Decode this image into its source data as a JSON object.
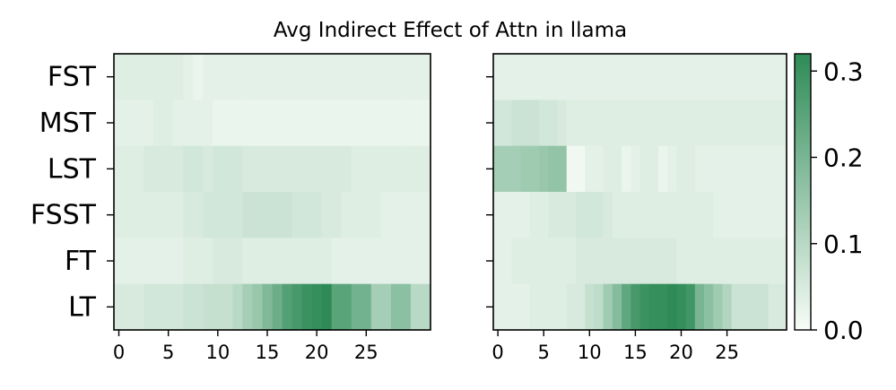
{
  "chart_data": {
    "type": "heatmap",
    "title": "Avg Indirect Effect of Attn in llama",
    "colormap": {
      "low": "#f7fcf7",
      "high": "#2e8b57"
    },
    "vmin": 0.0,
    "vmax": 0.32,
    "colorbar_ticks": [
      {
        "value": 0.0,
        "label": "0.0"
      },
      {
        "value": 0.1,
        "label": "0.1"
      },
      {
        "value": 0.2,
        "label": "0.2"
      },
      {
        "value": 0.3,
        "label": "0.3"
      }
    ],
    "y_categories": [
      "FST",
      "MST",
      "LST",
      "FSST",
      "FT",
      "LT"
    ],
    "x_ticks": [
      0,
      5,
      10,
      15,
      20,
      25
    ],
    "n_layers": 32,
    "panels": [
      {
        "name": "left",
        "matrix": [
          [
            0.04,
            0.04,
            0.04,
            0.04,
            0.04,
            0.04,
            0.04,
            0.03,
            0.02,
            0.03,
            0.03,
            0.03,
            0.03,
            0.03,
            0.03,
            0.03,
            0.03,
            0.03,
            0.03,
            0.03,
            0.03,
            0.03,
            0.03,
            0.03,
            0.03,
            0.03,
            0.03,
            0.03,
            0.03,
            0.03,
            0.03,
            0.03
          ],
          [
            0.03,
            0.03,
            0.03,
            0.03,
            0.04,
            0.04,
            0.03,
            0.03,
            0.03,
            0.03,
            0.02,
            0.02,
            0.02,
            0.02,
            0.02,
            0.02,
            0.02,
            0.02,
            0.02,
            0.02,
            0.02,
            0.02,
            0.02,
            0.02,
            0.02,
            0.02,
            0.02,
            0.02,
            0.02,
            0.02,
            0.02,
            0.02
          ],
          [
            0.04,
            0.04,
            0.04,
            0.05,
            0.05,
            0.05,
            0.05,
            0.06,
            0.06,
            0.05,
            0.06,
            0.06,
            0.06,
            0.05,
            0.05,
            0.05,
            0.05,
            0.05,
            0.05,
            0.05,
            0.05,
            0.05,
            0.05,
            0.05,
            0.04,
            0.04,
            0.04,
            0.04,
            0.04,
            0.04,
            0.04,
            0.04
          ],
          [
            0.04,
            0.04,
            0.04,
            0.04,
            0.04,
            0.04,
            0.04,
            0.05,
            0.05,
            0.06,
            0.06,
            0.06,
            0.06,
            0.07,
            0.07,
            0.07,
            0.07,
            0.07,
            0.06,
            0.06,
            0.06,
            0.05,
            0.05,
            0.04,
            0.04,
            0.04,
            0.04,
            0.03,
            0.03,
            0.03,
            0.03,
            0.03
          ],
          [
            0.03,
            0.03,
            0.03,
            0.03,
            0.03,
            0.03,
            0.03,
            0.04,
            0.04,
            0.04,
            0.05,
            0.05,
            0.05,
            0.04,
            0.04,
            0.04,
            0.04,
            0.04,
            0.04,
            0.04,
            0.04,
            0.04,
            0.03,
            0.03,
            0.03,
            0.03,
            0.03,
            0.03,
            0.03,
            0.03,
            0.03,
            0.03
          ],
          [
            0.05,
            0.05,
            0.05,
            0.06,
            0.06,
            0.06,
            0.06,
            0.07,
            0.07,
            0.08,
            0.08,
            0.08,
            0.1,
            0.13,
            0.15,
            0.19,
            0.22,
            0.26,
            0.28,
            0.3,
            0.31,
            0.32,
            0.25,
            0.25,
            0.21,
            0.21,
            0.13,
            0.13,
            0.17,
            0.17,
            0.1,
            0.1
          ]
        ]
      },
      {
        "name": "right",
        "matrix": [
          [
            0.03,
            0.03,
            0.03,
            0.03,
            0.03,
            0.03,
            0.03,
            0.03,
            0.03,
            0.03,
            0.03,
            0.03,
            0.03,
            0.03,
            0.03,
            0.03,
            0.03,
            0.03,
            0.03,
            0.03,
            0.03,
            0.03,
            0.03,
            0.03,
            0.03,
            0.03,
            0.03,
            0.03,
            0.03,
            0.03,
            0.03,
            0.03
          ],
          [
            0.06,
            0.06,
            0.07,
            0.07,
            0.07,
            0.06,
            0.06,
            0.05,
            0.04,
            0.04,
            0.04,
            0.04,
            0.04,
            0.04,
            0.04,
            0.04,
            0.04,
            0.04,
            0.04,
            0.04,
            0.04,
            0.04,
            0.04,
            0.04,
            0.04,
            0.04,
            0.04,
            0.04,
            0.04,
            0.04,
            0.04,
            0.04
          ],
          [
            0.13,
            0.13,
            0.13,
            0.14,
            0.14,
            0.15,
            0.16,
            0.16,
            0.01,
            0.01,
            0.03,
            0.03,
            0.04,
            0.04,
            0.02,
            0.03,
            0.04,
            0.04,
            0.02,
            0.03,
            0.04,
            0.04,
            0.03,
            0.03,
            0.03,
            0.03,
            0.03,
            0.03,
            0.03,
            0.03,
            0.03,
            0.03
          ],
          [
            0.03,
            0.03,
            0.03,
            0.03,
            0.04,
            0.04,
            0.05,
            0.05,
            0.05,
            0.06,
            0.06,
            0.06,
            0.05,
            0.04,
            0.04,
            0.04,
            0.04,
            0.04,
            0.04,
            0.04,
            0.04,
            0.04,
            0.04,
            0.04,
            0.03,
            0.03,
            0.03,
            0.03,
            0.03,
            0.03,
            0.03,
            0.03
          ],
          [
            0.03,
            0.03,
            0.04,
            0.04,
            0.04,
            0.04,
            0.04,
            0.04,
            0.04,
            0.05,
            0.05,
            0.05,
            0.05,
            0.05,
            0.05,
            0.05,
            0.05,
            0.05,
            0.05,
            0.05,
            0.04,
            0.04,
            0.04,
            0.04,
            0.04,
            0.04,
            0.04,
            0.04,
            0.04,
            0.04,
            0.04,
            0.04
          ],
          [
            0.03,
            0.03,
            0.03,
            0.03,
            0.04,
            0.04,
            0.04,
            0.04,
            0.05,
            0.05,
            0.08,
            0.09,
            0.14,
            0.18,
            0.24,
            0.28,
            0.3,
            0.31,
            0.31,
            0.32,
            0.31,
            0.29,
            0.2,
            0.17,
            0.14,
            0.11,
            0.07,
            0.07,
            0.07,
            0.07,
            0.05,
            0.05
          ]
        ]
      }
    ]
  }
}
